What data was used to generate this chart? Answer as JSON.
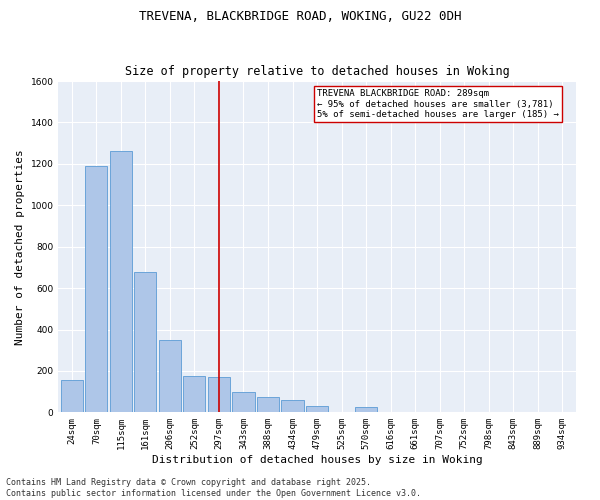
{
  "title_line1": "TREVENA, BLACKBRIDGE ROAD, WOKING, GU22 0DH",
  "title_line2": "Size of property relative to detached houses in Woking",
  "xlabel": "Distribution of detached houses by size in Woking",
  "ylabel": "Number of detached properties",
  "categories": [
    "24sqm",
    "70sqm",
    "115sqm",
    "161sqm",
    "206sqm",
    "252sqm",
    "297sqm",
    "343sqm",
    "388sqm",
    "434sqm",
    "479sqm",
    "525sqm",
    "570sqm",
    "616sqm",
    "661sqm",
    "707sqm",
    "752sqm",
    "798sqm",
    "843sqm",
    "889sqm",
    "934sqm"
  ],
  "values": [
    155,
    1190,
    1260,
    680,
    350,
    175,
    170,
    100,
    75,
    60,
    30,
    0,
    25,
    0,
    0,
    0,
    0,
    0,
    0,
    0,
    0
  ],
  "bar_color": "#aec6e8",
  "bar_edge_color": "#5b9bd5",
  "vline_x_index": 6,
  "vline_color": "#cc0000",
  "annotation_text": "TREVENA BLACKBRIDGE ROAD: 289sqm\n← 95% of detached houses are smaller (3,781)\n5% of semi-detached houses are larger (185) →",
  "annotation_box_color": "#ffffff",
  "annotation_box_edge": "#cc0000",
  "ylim": [
    0,
    1600
  ],
  "yticks": [
    0,
    200,
    400,
    600,
    800,
    1000,
    1200,
    1400,
    1600
  ],
  "background_color": "#e8eef7",
  "grid_color": "#ffffff",
  "footer_line1": "Contains HM Land Registry data © Crown copyright and database right 2025.",
  "footer_line2": "Contains public sector information licensed under the Open Government Licence v3.0.",
  "title_fontsize": 9,
  "subtitle_fontsize": 8.5,
  "label_fontsize": 8,
  "tick_fontsize": 6.5,
  "footer_fontsize": 6,
  "annotation_fontsize": 6.5
}
